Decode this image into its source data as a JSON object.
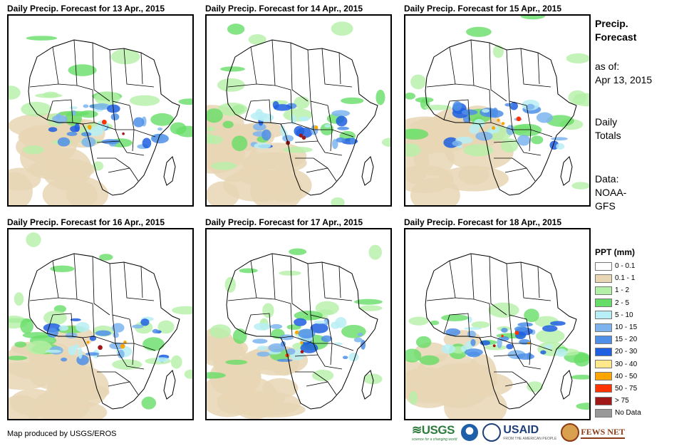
{
  "panels": [
    {
      "title": "Daily Precip. Forecast for 13 Apr., 2015"
    },
    {
      "title": "Daily Precip. Forecast for 14 Apr., 2015"
    },
    {
      "title": "Daily Precip. Forecast for 15 Apr., 2015"
    },
    {
      "title": "Daily Precip. Forecast for 16 Apr., 2015"
    },
    {
      "title": "Daily Precip. Forecast for 17 Apr., 2015"
    },
    {
      "title": "Daily Precip. Forecast for 18 Apr., 2015"
    }
  ],
  "sidebar": {
    "heading_line1": "Precip.",
    "heading_line2": "Forecast",
    "asof_label": "as of:",
    "asof_date": "Apr 13, 2015",
    "totals_line1": "Daily",
    "totals_line2": "Totals",
    "data_line1": "Data:",
    "data_line2": "NOAA-",
    "data_line3": "GFS"
  },
  "legend": {
    "title": "PPT (mm)",
    "items": [
      {
        "label": "0 - 0.1",
        "color": "#ffffff"
      },
      {
        "label": "0.1 - 1",
        "color": "#e8d6b4"
      },
      {
        "label": "1 - 2",
        "color": "#b5f0a8"
      },
      {
        "label": "2 - 5",
        "color": "#66dd66"
      },
      {
        "label": "5 - 10",
        "color": "#b8eef5"
      },
      {
        "label": "10 - 15",
        "color": "#7db4ee"
      },
      {
        "label": "15 - 20",
        "color": "#4f8fe8"
      },
      {
        "label": "20 - 30",
        "color": "#1f5fe0"
      },
      {
        "label": "30 - 40",
        "color": "#ffe88a"
      },
      {
        "label": "40 - 50",
        "color": "#ffa500"
      },
      {
        "label": "50 - 75",
        "color": "#ff3300"
      },
      {
        "label": "> 75",
        "color": "#a01818"
      },
      {
        "label": "No Data",
        "color": "#999999"
      }
    ]
  },
  "credit": "Map produced by USGS/EROS",
  "logos": {
    "usgs": "USGS",
    "usgs_tagline": "science for a changing world",
    "usaid": "USAID",
    "usaid_tagline": "FROM THE AMERICAN PEOPLE",
    "fews": "FEWS NET"
  }
}
